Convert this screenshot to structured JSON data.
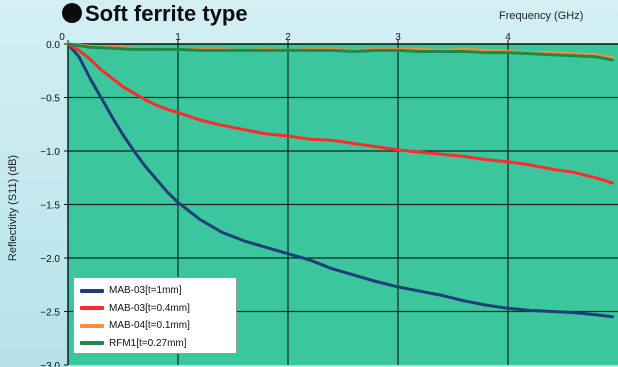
{
  "chart_data": {
    "type": "line",
    "title": "Soft ferrite type",
    "xlabel": "Frequency (GHz)",
    "ylabel": "Reflectivity (S11) (dB)",
    "xlim": [
      0,
      5
    ],
    "ylim": [
      -3.0,
      0.0
    ],
    "xticks": [
      0,
      1,
      2,
      3,
      4
    ],
    "yticks": [
      0.0,
      -0.5,
      -1.0,
      -1.5,
      -2.0,
      -2.5,
      -3.0
    ],
    "ytick_labels": [
      "0.0",
      "−0.5",
      "−1.0",
      "−1.5",
      "−2.0",
      "−2.5",
      "−3.0"
    ],
    "x_axis_position": "top",
    "grid": true,
    "legend_position": "bottom-left",
    "series": [
      {
        "name": "MAB-03[t=1mm]",
        "color": "#1f3d7a",
        "x": [
          0.0,
          0.1,
          0.2,
          0.3,
          0.4,
          0.5,
          0.6,
          0.7,
          0.8,
          0.9,
          1.0,
          1.2,
          1.4,
          1.6,
          1.8,
          2.0,
          2.2,
          2.4,
          2.6,
          2.8,
          3.0,
          3.2,
          3.4,
          3.6,
          3.8,
          4.0,
          4.2,
          4.4,
          4.6,
          4.8,
          4.95
        ],
        "y": [
          0.0,
          -0.12,
          -0.32,
          -0.5,
          -0.68,
          -0.85,
          -1.0,
          -1.14,
          -1.26,
          -1.38,
          -1.48,
          -1.64,
          -1.76,
          -1.84,
          -1.9,
          -1.96,
          -2.02,
          -2.1,
          -2.16,
          -2.22,
          -2.27,
          -2.31,
          -2.35,
          -2.4,
          -2.44,
          -2.47,
          -2.49,
          -2.5,
          -2.51,
          -2.53,
          -2.55
        ]
      },
      {
        "name": "MAB-03[t=0.4mm]",
        "color": "#ff2a2a",
        "x": [
          0.0,
          0.1,
          0.2,
          0.3,
          0.4,
          0.5,
          0.6,
          0.7,
          0.8,
          0.9,
          1.0,
          1.2,
          1.4,
          1.6,
          1.8,
          2.0,
          2.2,
          2.4,
          2.6,
          2.8,
          3.0,
          3.2,
          3.4,
          3.6,
          3.8,
          4.0,
          4.2,
          4.4,
          4.6,
          4.8,
          4.95
        ],
        "y": [
          0.0,
          -0.06,
          -0.14,
          -0.24,
          -0.32,
          -0.4,
          -0.46,
          -0.52,
          -0.57,
          -0.61,
          -0.64,
          -0.71,
          -0.76,
          -0.8,
          -0.84,
          -0.86,
          -0.89,
          -0.9,
          -0.93,
          -0.96,
          -0.99,
          -1.01,
          -1.03,
          -1.05,
          -1.08,
          -1.1,
          -1.13,
          -1.17,
          -1.2,
          -1.25,
          -1.3
        ]
      },
      {
        "name": "MAB-04[t=0.1mm]",
        "color": "#ff8a3a",
        "x": [
          0.0,
          0.2,
          0.4,
          0.6,
          0.8,
          1.0,
          1.2,
          1.4,
          1.6,
          1.8,
          2.0,
          2.2,
          2.4,
          2.6,
          2.8,
          3.0,
          3.2,
          3.4,
          3.6,
          3.8,
          4.0,
          4.2,
          4.4,
          4.6,
          4.8,
          4.95
        ],
        "y": [
          0.0,
          -0.02,
          -0.03,
          -0.04,
          -0.05,
          -0.05,
          -0.05,
          -0.05,
          -0.06,
          -0.05,
          -0.06,
          -0.05,
          -0.05,
          -0.06,
          -0.05,
          -0.05,
          -0.05,
          -0.06,
          -0.05,
          -0.06,
          -0.07,
          -0.08,
          -0.08,
          -0.09,
          -0.1,
          -0.13
        ]
      },
      {
        "name": "RFM1[t=0.27mm]",
        "color": "#1a8a48",
        "x": [
          0.0,
          0.2,
          0.4,
          0.6,
          0.8,
          1.0,
          1.2,
          1.4,
          1.6,
          1.8,
          2.0,
          2.2,
          2.4,
          2.6,
          2.8,
          3.0,
          3.2,
          3.4,
          3.6,
          3.8,
          4.0,
          4.2,
          4.4,
          4.6,
          4.8,
          4.95
        ],
        "y": [
          0.0,
          -0.03,
          -0.04,
          -0.05,
          -0.05,
          -0.05,
          -0.06,
          -0.06,
          -0.06,
          -0.06,
          -0.06,
          -0.06,
          -0.06,
          -0.07,
          -0.06,
          -0.06,
          -0.07,
          -0.07,
          -0.07,
          -0.08,
          -0.08,
          -0.09,
          -0.1,
          -0.11,
          -0.12,
          -0.15
        ]
      }
    ]
  },
  "plot_background": "#3cc69e"
}
